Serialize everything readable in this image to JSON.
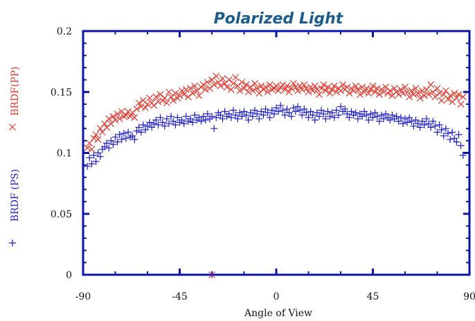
{
  "chart_data": {
    "type": "scatter",
    "title": "Polarized Light",
    "xlabel": "Angle of View",
    "xlim": [
      -90,
      90
    ],
    "ylim": [
      0,
      0.2
    ],
    "x_ticks": [
      "-90",
      "-45",
      "0",
      "45",
      "90"
    ],
    "y_ticks": [
      "0",
      "0.05",
      "0.1",
      "0.15",
      "0.2"
    ],
    "grid": false,
    "colors": {
      "frame": "#0a14a8",
      "title": "#1a5c8c",
      "pp": "#e0352b",
      "ps": "#1a1ac8"
    },
    "series": [
      {
        "name": "BRDF(PP)",
        "marker": "×",
        "x": [
          -88,
          -87,
          -86,
          -85,
          -84,
          -83,
          -82,
          -81,
          -80,
          -79,
          -78,
          -77,
          -76,
          -75,
          -74,
          -73,
          -72,
          -71,
          -70,
          -69,
          -68,
          -67,
          -66,
          -65,
          -64,
          -63,
          -62,
          -61,
          -60,
          -59,
          -58,
          -57,
          -56,
          -55,
          -54,
          -53,
          -52,
          -51,
          -50,
          -49,
          -48,
          -47,
          -46,
          -45,
          -44,
          -43,
          -42,
          -41,
          -40,
          -39,
          -38,
          -37,
          -36,
          -35,
          -34,
          -33,
          -32,
          -31,
          -30,
          -29,
          -28,
          -27,
          -26,
          -25,
          -24,
          -23,
          -22,
          -21,
          -20,
          -19,
          -18,
          -17,
          -16,
          -15,
          -14,
          -13,
          -12,
          -11,
          -10,
          -9,
          -8,
          -7,
          -6,
          -5,
          -4,
          -3,
          -2,
          -1,
          0,
          1,
          2,
          3,
          4,
          5,
          6,
          7,
          8,
          9,
          10,
          11,
          12,
          13,
          14,
          15,
          16,
          17,
          18,
          19,
          20,
          21,
          22,
          23,
          24,
          25,
          26,
          27,
          28,
          29,
          30,
          31,
          32,
          33,
          34,
          35,
          36,
          37,
          38,
          39,
          40,
          41,
          42,
          43,
          44,
          45,
          46,
          47,
          48,
          49,
          50,
          51,
          52,
          53,
          54,
          55,
          56,
          57,
          58,
          59,
          60,
          61,
          62,
          63,
          64,
          65,
          66,
          67,
          68,
          69,
          70,
          71,
          72,
          73,
          74,
          75,
          76,
          77,
          78,
          79,
          80,
          81,
          82,
          83,
          84,
          85,
          86,
          87
        ],
        "y": [
          0.104,
          0.108,
          0.103,
          0.112,
          0.115,
          0.111,
          0.12,
          0.117,
          0.124,
          0.121,
          0.128,
          0.124,
          0.13,
          0.127,
          0.132,
          0.128,
          0.134,
          0.13,
          0.131,
          0.134,
          0.13,
          0.133,
          0.129,
          0.136,
          0.141,
          0.138,
          0.143,
          0.137,
          0.14,
          0.145,
          0.141,
          0.139,
          0.146,
          0.142,
          0.148,
          0.143,
          0.145,
          0.141,
          0.15,
          0.146,
          0.143,
          0.149,
          0.145,
          0.147,
          0.151,
          0.148,
          0.152,
          0.146,
          0.153,
          0.149,
          0.155,
          0.151,
          0.147,
          0.154,
          0.156,
          0.152,
          0.158,
          0.153,
          0.16,
          0.156,
          0.163,
          0.158,
          0.155,
          0.161,
          0.157,
          0.154,
          0.16,
          0.152,
          0.157,
          0.162,
          0.155,
          0.151,
          0.158,
          0.153,
          0.156,
          0.15,
          0.154,
          0.151,
          0.157,
          0.153,
          0.149,
          0.155,
          0.152,
          0.154,
          0.15,
          0.156,
          0.152,
          0.153,
          0.155,
          0.151,
          0.154,
          0.156,
          0.152,
          0.155,
          0.15,
          0.153,
          0.157,
          0.154,
          0.151,
          0.155,
          0.152,
          0.156,
          0.153,
          0.15,
          0.154,
          0.151,
          0.155,
          0.152,
          0.148,
          0.153,
          0.156,
          0.151,
          0.154,
          0.149,
          0.152,
          0.155,
          0.15,
          0.153,
          0.151,
          0.156,
          0.152,
          0.154,
          0.149,
          0.153,
          0.151,
          0.155,
          0.152,
          0.148,
          0.154,
          0.15,
          0.153,
          0.149,
          0.152,
          0.155,
          0.15,
          0.153,
          0.148,
          0.152,
          0.15,
          0.154,
          0.149,
          0.151,
          0.147,
          0.153,
          0.15,
          0.148,
          0.152,
          0.149,
          0.154,
          0.15,
          0.146,
          0.151,
          0.148,
          0.153,
          0.149,
          0.145,
          0.151,
          0.147,
          0.152,
          0.148,
          0.156,
          0.15,
          0.146,
          0.153,
          0.149,
          0.143,
          0.148,
          0.151,
          0.144,
          0.147,
          0.142,
          0.149,
          0.145,
          0.148,
          0.14,
          0.146
        ],
        "extra_points": [
          [
            -30,
            0
          ]
        ]
      },
      {
        "name": "BRDF (PS)",
        "marker": "+",
        "x": [
          -88,
          -87,
          -86,
          -85,
          -84,
          -83,
          -82,
          -81,
          -80,
          -79,
          -78,
          -77,
          -76,
          -75,
          -74,
          -73,
          -72,
          -71,
          -70,
          -69,
          -68,
          -67,
          -66,
          -65,
          -64,
          -63,
          -62,
          -61,
          -60,
          -59,
          -58,
          -57,
          -56,
          -55,
          -54,
          -53,
          -52,
          -51,
          -50,
          -49,
          -48,
          -47,
          -46,
          -45,
          -44,
          -43,
          -42,
          -41,
          -40,
          -39,
          -38,
          -37,
          -36,
          -35,
          -34,
          -33,
          -32,
          -31,
          -30,
          -29,
          -28,
          -27,
          -26,
          -25,
          -24,
          -23,
          -22,
          -21,
          -20,
          -19,
          -18,
          -17,
          -16,
          -15,
          -14,
          -13,
          -12,
          -11,
          -10,
          -9,
          -8,
          -7,
          -6,
          -5,
          -4,
          -3,
          -2,
          -1,
          0,
          1,
          2,
          3,
          4,
          5,
          6,
          7,
          8,
          9,
          10,
          11,
          12,
          13,
          14,
          15,
          16,
          17,
          18,
          19,
          20,
          21,
          22,
          23,
          24,
          25,
          26,
          27,
          28,
          29,
          30,
          31,
          32,
          33,
          34,
          35,
          36,
          37,
          38,
          39,
          40,
          41,
          42,
          43,
          44,
          45,
          46,
          47,
          48,
          49,
          50,
          51,
          52,
          53,
          54,
          55,
          56,
          57,
          58,
          59,
          60,
          61,
          62,
          63,
          64,
          65,
          66,
          67,
          68,
          69,
          70,
          71,
          72,
          73,
          74,
          75,
          76,
          77,
          78,
          79,
          80,
          81,
          82,
          83,
          84,
          85,
          86,
          87
        ],
        "y": [
          0.089,
          0.096,
          0.091,
          0.098,
          0.093,
          0.1,
          0.097,
          0.103,
          0.105,
          0.108,
          0.104,
          0.11,
          0.107,
          0.113,
          0.109,
          0.115,
          0.111,
          0.116,
          0.112,
          0.117,
          0.113,
          0.114,
          0.111,
          0.118,
          0.121,
          0.117,
          0.123,
          0.119,
          0.122,
          0.125,
          0.121,
          0.124,
          0.127,
          0.123,
          0.129,
          0.125,
          0.122,
          0.128,
          0.124,
          0.13,
          0.126,
          0.123,
          0.129,
          0.125,
          0.127,
          0.124,
          0.13,
          0.126,
          0.128,
          0.125,
          0.131,
          0.127,
          0.129,
          0.126,
          0.13,
          0.127,
          0.132,
          0.128,
          0.13,
          0.12,
          0.129,
          0.133,
          0.131,
          0.128,
          0.134,
          0.13,
          0.132,
          0.129,
          0.135,
          0.131,
          0.128,
          0.133,
          0.13,
          0.134,
          0.131,
          0.127,
          0.133,
          0.13,
          0.135,
          0.132,
          0.128,
          0.134,
          0.131,
          0.136,
          0.133,
          0.129,
          0.135,
          0.132,
          0.137,
          0.134,
          0.139,
          0.135,
          0.131,
          0.136,
          0.133,
          0.13,
          0.137,
          0.134,
          0.138,
          0.135,
          0.131,
          0.136,
          0.133,
          0.129,
          0.134,
          0.131,
          0.127,
          0.133,
          0.13,
          0.135,
          0.132,
          0.128,
          0.134,
          0.13,
          0.133,
          0.129,
          0.135,
          0.131,
          0.138,
          0.134,
          0.136,
          0.132,
          0.129,
          0.134,
          0.131,
          0.133,
          0.128,
          0.132,
          0.13,
          0.134,
          0.131,
          0.127,
          0.132,
          0.129,
          0.133,
          0.13,
          0.126,
          0.131,
          0.128,
          0.132,
          0.129,
          0.127,
          0.131,
          0.128,
          0.13,
          0.126,
          0.129,
          0.124,
          0.128,
          0.125,
          0.129,
          0.126,
          0.122,
          0.127,
          0.124,
          0.121,
          0.126,
          0.123,
          0.128,
          0.124,
          0.121,
          0.126,
          0.122,
          0.117,
          0.123,
          0.119,
          0.114,
          0.12,
          0.116,
          0.111,
          0.117,
          0.112,
          0.109,
          0.115,
          0.106,
          0.098
        ],
        "extra_points": [
          [
            -30,
            0
          ]
        ]
      }
    ]
  }
}
